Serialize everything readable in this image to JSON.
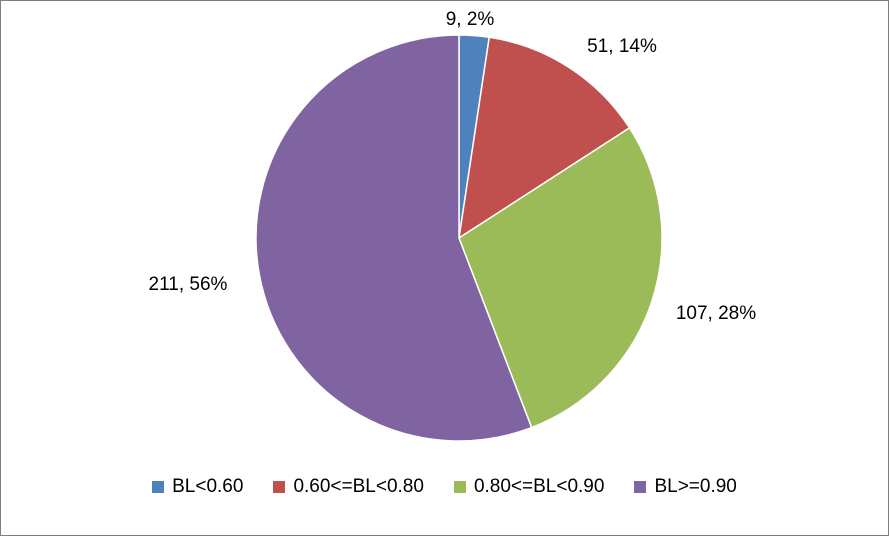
{
  "chart_data": {
    "type": "pie",
    "slices": [
      {
        "name": "BL<0.60",
        "value": 9,
        "percent": 2,
        "label": "9, 2%",
        "color": "#4F81BD"
      },
      {
        "name": "0.60<=BL<0.80",
        "value": 51,
        "percent": 14,
        "label": "51, 14%",
        "color": "#C0504D"
      },
      {
        "name": "0.80<=BL<0.90",
        "value": 107,
        "percent": 28,
        "label": "107, 28%",
        "color": "#9BBB59"
      },
      {
        "name": "BL>=0.90",
        "value": 211,
        "percent": 56,
        "label": "211, 56%",
        "color": "#8064A2"
      }
    ],
    "legend_position": "bottom",
    "start_angle": "12 o'clock, clockwise"
  },
  "legend": {
    "items": [
      {
        "label": "BL<0.60",
        "color": "#4F81BD"
      },
      {
        "label": "0.60<=BL<0.80",
        "color": "#C0504D"
      },
      {
        "label": "0.80<=BL<0.90",
        "color": "#9BBB59"
      },
      {
        "label": "BL>=0.90",
        "color": "#8064A2"
      }
    ]
  }
}
